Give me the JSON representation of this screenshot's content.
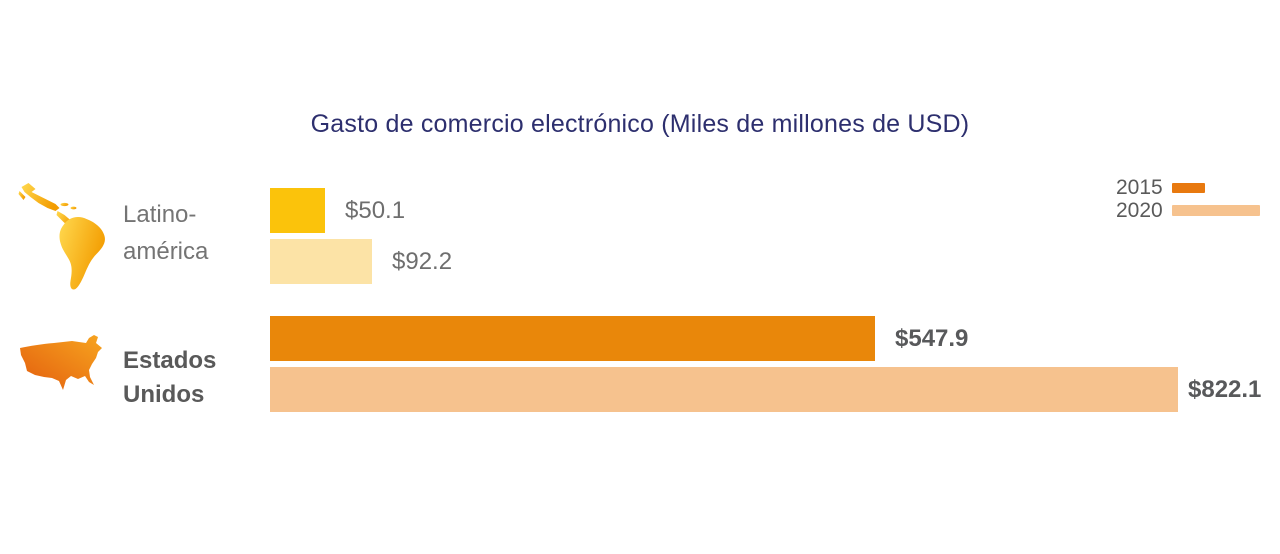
{
  "title": "Gasto de comercio electrónico (Miles de millones de USD)",
  "legend": {
    "items": [
      {
        "label": "2015",
        "color": "#E8790F"
      },
      {
        "label": "2020",
        "color": "#F6C28E"
      }
    ]
  },
  "rows": [
    {
      "name": "Latinoamérica",
      "label_line1": "Latino-",
      "label_line2": "américa",
      "icon": "latin-america-map-icon",
      "bars": [
        {
          "series": "2015",
          "value": 50.1,
          "label": "$50.1",
          "color": "#FBC30B"
        },
        {
          "series": "2020",
          "value": 92.2,
          "label": "$92.2",
          "color": "#FCE3A6"
        }
      ]
    },
    {
      "name": "Estados Unidos",
      "label_line1": "Estados",
      "label_line2": "Unidos",
      "icon": "usa-map-icon",
      "bars": [
        {
          "series": "2015",
          "value": 547.9,
          "label": "$547.9",
          "color": "#E9870A"
        },
        {
          "series": "2020",
          "value": 822.1,
          "label": "$822.1",
          "color": "#F6C28E"
        }
      ]
    }
  ],
  "chart_data": {
    "type": "bar",
    "orientation": "horizontal",
    "title": "Gasto de comercio electrónico (Miles de millones de USD)",
    "categories": [
      "Latino-américa",
      "Estados Unidos"
    ],
    "series": [
      {
        "name": "2015",
        "values": [
          50.1,
          547.9
        ],
        "colors": [
          "#FBC30B",
          "#E9870A"
        ]
      },
      {
        "name": "2020",
        "values": [
          92.2,
          822.1
        ],
        "colors": [
          "#FCE3A6",
          "#F6C28E"
        ]
      }
    ],
    "value_labels": {
      "2015": [
        "$50.1",
        "$547.9"
      ],
      "2020": [
        "$92.2",
        "$822.1"
      ]
    },
    "unit": "Miles de millones de USD",
    "xlim": [
      0,
      822.1
    ],
    "grid": false,
    "axes_visible": false,
    "legend_position": "top-right"
  },
  "colors": {
    "title": "#2D2F6E",
    "category_label": "#747474",
    "category_label_bold": "#595959",
    "value_label": "#6E6E6E",
    "value_label_bold": "#58595B",
    "legend_label": "#5A5A5A",
    "background": "#FFFFFF"
  }
}
